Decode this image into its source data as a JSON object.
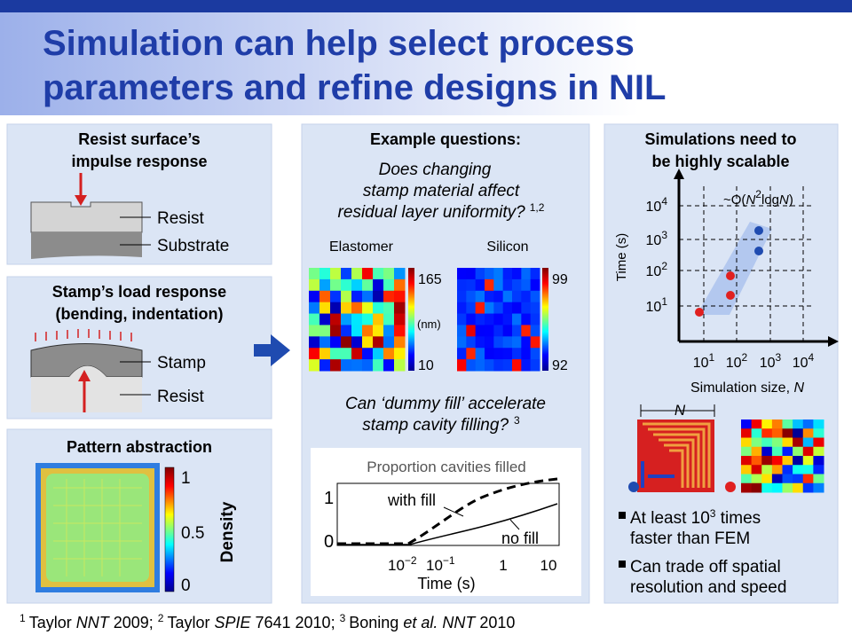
{
  "title": [
    "Simulation can help select process",
    "parameters and refine designs in NIL"
  ],
  "impulse": {
    "heading": [
      "Resist surface’s",
      "impulse response"
    ],
    "labels": [
      "Resist",
      "Substrate"
    ]
  },
  "load": {
    "heading": [
      "Stamp’s load response",
      "(bending, indentation)"
    ],
    "labels": [
      "Stamp",
      "Resist"
    ]
  },
  "pattern": {
    "heading": "Pattern abstraction",
    "scale": [
      1,
      0.5,
      0
    ],
    "axis_label": "Density"
  },
  "questions": {
    "heading": "Example questions:",
    "q1": {
      "lines": [
        "Does changing",
        "stamp material affect",
        "residual layer uniformity?"
      ],
      "refs": "1,2"
    },
    "maps": [
      {
        "label": "Elastomer",
        "max": 165,
        "unit": "(nm)",
        "min": 10
      },
      {
        "label": "Silicon",
        "max": 99,
        "min": 92
      }
    ],
    "q2": {
      "lines": [
        "Can ‘dummy fill’ accelerate",
        "stamp cavity filling?"
      ],
      "refs": 3
    },
    "plot": {
      "title": "Proportion cavities filled",
      "yticks": [
        1,
        0
      ],
      "xticks": [
        {
          "base": 10,
          "exp": "−2"
        },
        {
          "base": 10,
          "exp": "−1"
        },
        1,
        10
      ],
      "xlabel": "Time (s)",
      "curves": [
        "with fill",
        "no fill"
      ]
    }
  },
  "scaling": {
    "heading": [
      "Simulations need to",
      "be highly scalable"
    ],
    "complexity": {
      "prefix": "~O(",
      "var": "N",
      "exp": 2,
      "log": "log",
      "close": ")"
    },
    "ylabel": "Time (s)",
    "yticks": [
      {
        "base": 10,
        "exp": 4
      },
      {
        "base": 10,
        "exp": 3
      },
      {
        "base": 10,
        "exp": 2
      },
      {
        "base": 10,
        "exp": 1
      }
    ],
    "xticks": [
      {
        "base": 10,
        "exp": 1
      },
      {
        "base": 10,
        "exp": 2
      },
      {
        "base": 10,
        "exp": 3
      },
      {
        "base": 10,
        "exp": 4
      }
    ],
    "xlabel": {
      "text": "Simulation size, ",
      "var": "N"
    },
    "dimension": "N",
    "bullets": [
      {
        "text": "At least 10",
        "exp": 3,
        "rest": " times",
        "line2": "faster than FEM"
      },
      {
        "lines": [
          "Can trade off spatial",
          "resolution and speed"
        ]
      }
    ]
  },
  "footer": [
    {
      "num": 1,
      "author": "Taylor ",
      "journal": "NNT",
      "rest": " 2009; "
    },
    {
      "num": 2,
      "author": "Taylor ",
      "journal": "SPIE",
      "rest": " 7641 2010; "
    },
    {
      "num": 3,
      "author": "Boning ",
      "journal": "et al. NNT",
      "rest": " 2010"
    }
  ]
}
